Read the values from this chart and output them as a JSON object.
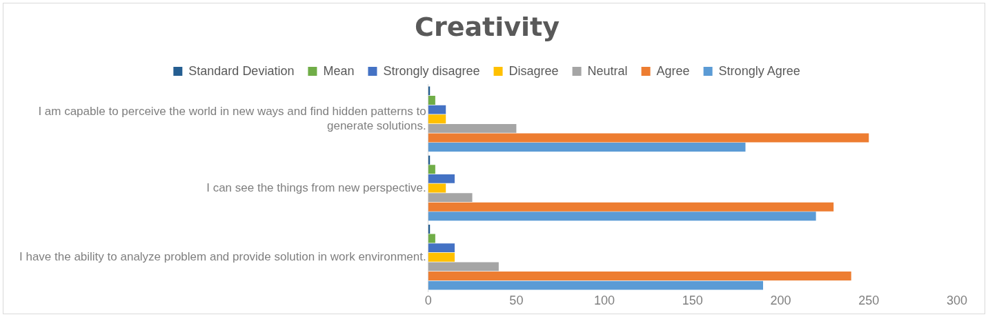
{
  "chart_data": {
    "type": "bar",
    "orientation": "horizontal",
    "title": "Creativity",
    "categories": [
      "I am capable to perceive the world in new ways and find hidden patterns to generate solutions.",
      "I can see the things from new perspective.",
      "I have the ability to analyze problem and provide solution in work environment."
    ],
    "series": [
      {
        "name": "Standard Deviation",
        "color": "#255e91",
        "values": [
          1,
          1,
          1
        ]
      },
      {
        "name": "Mean",
        "color": "#70ad47",
        "values": [
          4,
          4,
          4
        ]
      },
      {
        "name": "Strongly disagree",
        "color": "#4472c4",
        "values": [
          10,
          15,
          15
        ]
      },
      {
        "name": "Disagree",
        "color": "#ffc000",
        "values": [
          10,
          10,
          15
        ]
      },
      {
        "name": "Neutral",
        "color": "#a5a5a5",
        "values": [
          50,
          25,
          40
        ]
      },
      {
        "name": "Agree",
        "color": "#ed7d31",
        "values": [
          250,
          230,
          240
        ]
      },
      {
        "name": "Strongly Agree",
        "color": "#5b9bd5",
        "values": [
          180,
          220,
          190
        ]
      }
    ],
    "xlim": [
      0,
      300
    ],
    "xticks": [
      0,
      50,
      100,
      150,
      200,
      250,
      300
    ],
    "grid": false,
    "legend": "top"
  }
}
